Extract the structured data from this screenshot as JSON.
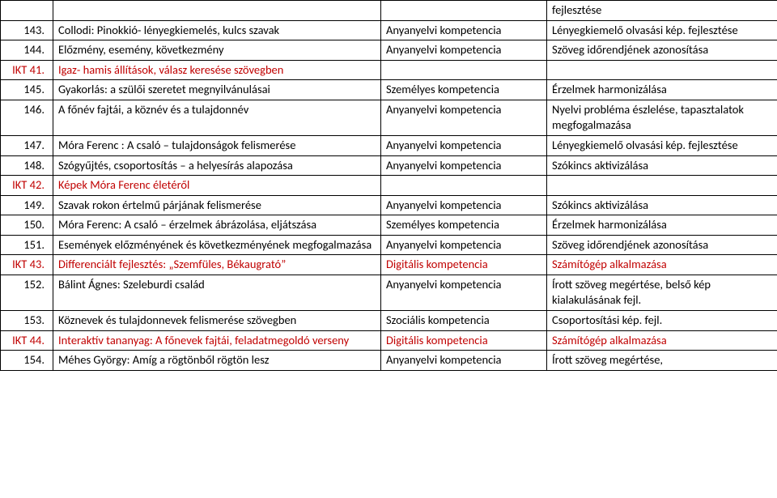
{
  "columns": {
    "num_align": "right",
    "text_color_default": "#000000",
    "text_color_accent": "#c00000"
  },
  "rows": [
    {
      "num": "",
      "topic": "",
      "comp": "",
      "goal": "fejlesztése"
    },
    {
      "num": "143.",
      "topic": "Collodi: Pinokkió- lényegkiemelés, kulcs szavak",
      "comp": "Anyanyelvi kompetencia",
      "goal": "Lényegkiemelő olvasási kép. fejlesztése"
    },
    {
      "num": "144.",
      "topic": "Előzmény, esemény, következmény",
      "comp": "Anyanyelvi kompetencia",
      "goal": "Szöveg időrendjének azonosítása"
    },
    {
      "num": "IKT 41.",
      "topic": "Igaz- hamis állítások, válasz keresése szövegben",
      "comp": "",
      "goal": "",
      "accent": true
    },
    {
      "num": "145.",
      "topic": "Gyakorlás: a szülői szeretet megnyilvánulásai",
      "comp": "Személyes kompetencia",
      "goal": "Érzelmek harmonizálása"
    },
    {
      "num": "146.",
      "topic": "A főnév fajtái, a köznév és a tulajdonnév",
      "comp": "Anyanyelvi kompetencia",
      "goal": "Nyelvi probléma észlelése, tapasztalatok megfogalmazása"
    },
    {
      "num": "147.",
      "topic": "Móra Ferenc : A csaló – tulajdonságok felismerése",
      "comp": "Anyanyelvi kompetencia",
      "goal": "Lényegkiemelő olvasási kép. fejlesztése"
    },
    {
      "num": "148.",
      "topic": "Szógyűjtés, csoportosítás – a helyesírás alapozása",
      "comp": "Anyanyelvi kompetencia",
      "goal": "Szókincs aktivizálása"
    },
    {
      "num": "IKT 42.",
      "topic": "Képek Móra Ferenc életéről",
      "comp": "",
      "goal": "",
      "accent": true
    },
    {
      "num": "149.",
      "topic": "Szavak rokon értelmű párjának felismerése",
      "comp": "Anyanyelvi kompetencia",
      "goal": "Szókincs aktivizálása"
    },
    {
      "num": "150.",
      "topic": "Móra Ferenc: A csaló – érzelmek ábrázolása, eljátszása",
      "comp": "Személyes kompetencia",
      "goal": "Érzelmek harmonizálása"
    },
    {
      "num": "151.",
      "topic": "Események előzményének és következményének megfogalmazása",
      "comp": "Anyanyelvi kompetencia",
      "goal": "Szöveg időrendjének azonosítása"
    },
    {
      "num": "IKT 43.",
      "topic": "Differenciált fejlesztés: „Szemfüles, Békaugrató”",
      "comp": "Digitális kompetencia",
      "goal": "Számítógép alkalmazása",
      "accent": true
    },
    {
      "num": "152.",
      "topic": "Bálint Ágnes: Szeleburdi család",
      "comp": "Anyanyelvi kompetencia",
      "goal": "Írott szöveg megértése, belső kép kialakulásának fejl."
    },
    {
      "num": "153.",
      "topic": "Köznevek és tulajdonnevek felismerése szövegben",
      "comp": "Szociális kompetencia",
      "goal": "Csoportosítási kép. fejl."
    },
    {
      "num": "IKT 44.",
      "topic": "Interaktív tananyag: A főnevek fajtái, feladatmegoldó verseny",
      "comp": "Digitális kompetencia",
      "goal": "Számítógép alkalmazása",
      "accent": true
    },
    {
      "num": "154.",
      "topic": "Méhes György: Amíg a rögtönből rögtön lesz",
      "comp": "Anyanyelvi kompetencia",
      "goal": "Írott szöveg megértése,"
    }
  ]
}
